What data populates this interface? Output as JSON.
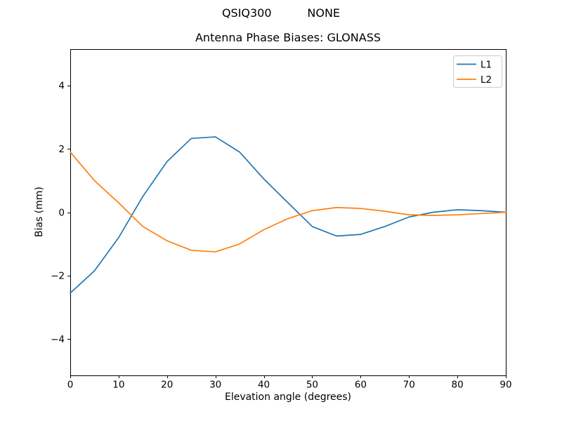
{
  "chart_data": {
    "type": "line",
    "suptitle": "QSIQ300          NONE",
    "title": "Antenna Phase Biases: GLONASS",
    "xlabel": "Elevation angle (degrees)",
    "ylabel": "Bias (mm)",
    "xlim": [
      0,
      90
    ],
    "ylim": [
      -5.15,
      5.15
    ],
    "xticks": [
      0,
      10,
      20,
      30,
      40,
      50,
      60,
      70,
      80,
      90
    ],
    "yticks": [
      -4,
      -2,
      0,
      2,
      4
    ],
    "grid": false,
    "legend": {
      "position": "upper right",
      "entries": [
        "L1",
        "L2"
      ]
    },
    "x": [
      0,
      5,
      10,
      15,
      20,
      25,
      30,
      35,
      40,
      45,
      50,
      55,
      60,
      65,
      70,
      75,
      80,
      85,
      90
    ],
    "series": [
      {
        "name": "L1",
        "color": "#1f77b4",
        "values": [
          -2.55,
          -1.85,
          -0.8,
          0.5,
          1.6,
          2.33,
          2.38,
          1.9,
          1.05,
          0.3,
          -0.45,
          -0.75,
          -0.7,
          -0.45,
          -0.15,
          0.0,
          0.08,
          0.05,
          0.0
        ]
      },
      {
        "name": "L2",
        "color": "#ff7f0e",
        "values": [
          1.9,
          1.0,
          0.3,
          -0.45,
          -0.9,
          -1.2,
          -1.25,
          -1.0,
          -0.55,
          -0.2,
          0.05,
          0.15,
          0.12,
          0.03,
          -0.08,
          -0.1,
          -0.08,
          -0.04,
          0.0
        ]
      }
    ]
  }
}
